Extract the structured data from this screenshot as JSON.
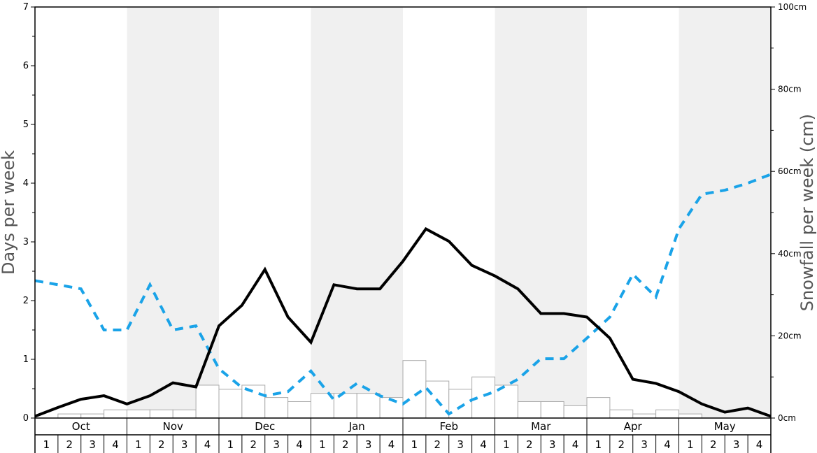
{
  "chart_data": {
    "type": "bar+line",
    "ylabel_left": "Days per week",
    "ylabel_right": "Snowfall per week (cm)",
    "ylim_left": [
      0,
      7
    ],
    "ylim_right": [
      0,
      100
    ],
    "left_ticks": [
      "0",
      "1",
      "2",
      "3",
      "4",
      "5",
      "6",
      "7"
    ],
    "right_ticks": [
      "0cm",
      "20cm",
      "40cm",
      "60cm",
      "80cm",
      "100cm"
    ],
    "months": [
      "Oct",
      "Nov",
      "Dec",
      "Jan",
      "Feb",
      "Mar",
      "Apr",
      "May"
    ],
    "weeks": [
      "1",
      "2",
      "3",
      "4"
    ],
    "shaded_months": [
      "Nov",
      "Jan",
      "Mar",
      "May"
    ],
    "bars_days_per_week": [
      0.0,
      0.07,
      0.07,
      0.14,
      0.14,
      0.14,
      0.14,
      0.56,
      0.49,
      0.56,
      0.35,
      0.28,
      0.42,
      0.42,
      0.42,
      0.35,
      0.98,
      0.63,
      0.49,
      0.7,
      0.56,
      0.28,
      0.28,
      0.21,
      0.35,
      0.14,
      0.07,
      0.14,
      0.07,
      0.0,
      0.0,
      0.0
    ],
    "snowfall_line_days": [
      0.03,
      0.18,
      0.32,
      0.38,
      0.24,
      0.38,
      0.6,
      0.53,
      1.57,
      1.92,
      2.53,
      1.72,
      1.29,
      2.27,
      2.2,
      2.2,
      2.67,
      3.22,
      3.01,
      2.6,
      2.42,
      2.2,
      1.78,
      1.78,
      1.72,
      1.36,
      0.66,
      0.59,
      0.45,
      0.24,
      0.1,
      0.17,
      0.03
    ],
    "temperature_dashed_days": [
      2.34,
      2.27,
      2.2,
      1.5,
      1.5,
      2.27,
      1.5,
      1.57,
      0.84,
      0.52,
      0.38,
      0.45,
      0.8,
      0.31,
      0.59,
      0.38,
      0.24,
      0.52,
      0.07,
      0.31,
      0.45,
      0.66,
      1.01,
      1.01,
      1.36,
      1.72,
      2.45,
      2.06,
      3.22,
      3.81,
      3.88,
      4.0,
      4.15
    ],
    "colors": {
      "snowfall_line": "#000000",
      "dashed_line": "#1aa3e8",
      "shade": "#f0f0f0",
      "bar_fill": "#ffffff",
      "bar_stroke": "#aaaaaa"
    }
  }
}
